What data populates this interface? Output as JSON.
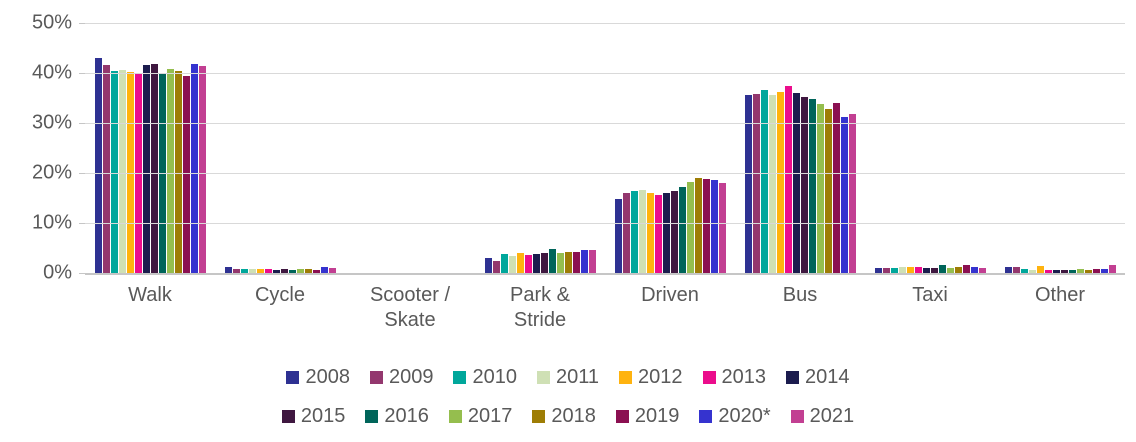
{
  "chart_data": {
    "type": "bar",
    "title": "",
    "xlabel": "",
    "ylabel": "",
    "ylim": [
      0,
      50
    ],
    "y_ticks": [
      {
        "label": "50%",
        "value": 50
      },
      {
        "label": "40%",
        "value": 40
      },
      {
        "label": "30%",
        "value": 30
      },
      {
        "label": "20%",
        "value": 20
      },
      {
        "label": "10%",
        "value": 10
      },
      {
        "label": "0%",
        "value": 0
      }
    ],
    "grid": true,
    "legend_position": "bottom",
    "legend_rows": [
      7,
      7
    ],
    "categories": [
      "Walk",
      "Cycle",
      "Scooter / Skate",
      "Park & Stride",
      "Driven",
      "Bus",
      "Taxi",
      "Other"
    ],
    "series": [
      {
        "name": "2008",
        "color": "#2E3192",
        "values": [
          43.0,
          1.1,
          0,
          3.0,
          14.7,
          35.5,
          1.0,
          1.2
        ]
      },
      {
        "name": "2009",
        "color": "#93376E",
        "values": [
          41.6,
          0.7,
          0,
          2.4,
          16.0,
          35.8,
          1.0,
          1.1
        ]
      },
      {
        "name": "2010",
        "color": "#00A79B",
        "values": [
          40.4,
          0.7,
          0,
          3.8,
          16.3,
          36.5,
          0.9,
          0.7
        ]
      },
      {
        "name": "2011",
        "color": "#CFE0B5",
        "values": [
          40.6,
          0.8,
          0,
          3.3,
          16.6,
          35.6,
          1.1,
          0.6
        ]
      },
      {
        "name": "2012",
        "color": "#FFB30F",
        "values": [
          40.1,
          0.8,
          0,
          3.9,
          16.0,
          36.2,
          1.1,
          1.3
        ]
      },
      {
        "name": "2013",
        "color": "#EB0D8C",
        "values": [
          39.8,
          0.8,
          0,
          3.5,
          15.6,
          37.3,
          1.2,
          0.5
        ]
      },
      {
        "name": "2014",
        "color": "#1B1C4E",
        "values": [
          41.5,
          0.5,
          0,
          3.7,
          16.0,
          36.0,
          0.9,
          0.5
        ]
      },
      {
        "name": "2015",
        "color": "#3F1740",
        "values": [
          41.8,
          0.7,
          0,
          3.9,
          16.3,
          35.1,
          0.9,
          0.5
        ]
      },
      {
        "name": "2016",
        "color": "#00655A",
        "values": [
          39.8,
          0.5,
          0,
          4.7,
          17.2,
          34.7,
          1.5,
          0.6
        ]
      },
      {
        "name": "2017",
        "color": "#95BE4E",
        "values": [
          40.7,
          0.7,
          0,
          3.9,
          18.1,
          33.7,
          1.0,
          0.7
        ]
      },
      {
        "name": "2018",
        "color": "#9E7D05",
        "values": [
          40.4,
          0.7,
          0,
          4.2,
          19.0,
          32.8,
          1.2,
          0.6
        ]
      },
      {
        "name": "2019",
        "color": "#8B1051",
        "values": [
          39.3,
          0.6,
          0,
          4.1,
          18.8,
          33.9,
          1.6,
          0.7
        ]
      },
      {
        "name": "2020*",
        "color": "#3533CF",
        "values": [
          41.7,
          1.1,
          0,
          4.6,
          18.5,
          31.1,
          1.2,
          0.7
        ]
      },
      {
        "name": "2021",
        "color": "#C23F92",
        "values": [
          41.3,
          1.0,
          0,
          4.6,
          18.0,
          31.7,
          1.0,
          1.5
        ]
      }
    ]
  },
  "colors": {
    "gridline": "#D9D9D9",
    "axis_line": "#C6C6C6",
    "axis_text": "#595959"
  }
}
